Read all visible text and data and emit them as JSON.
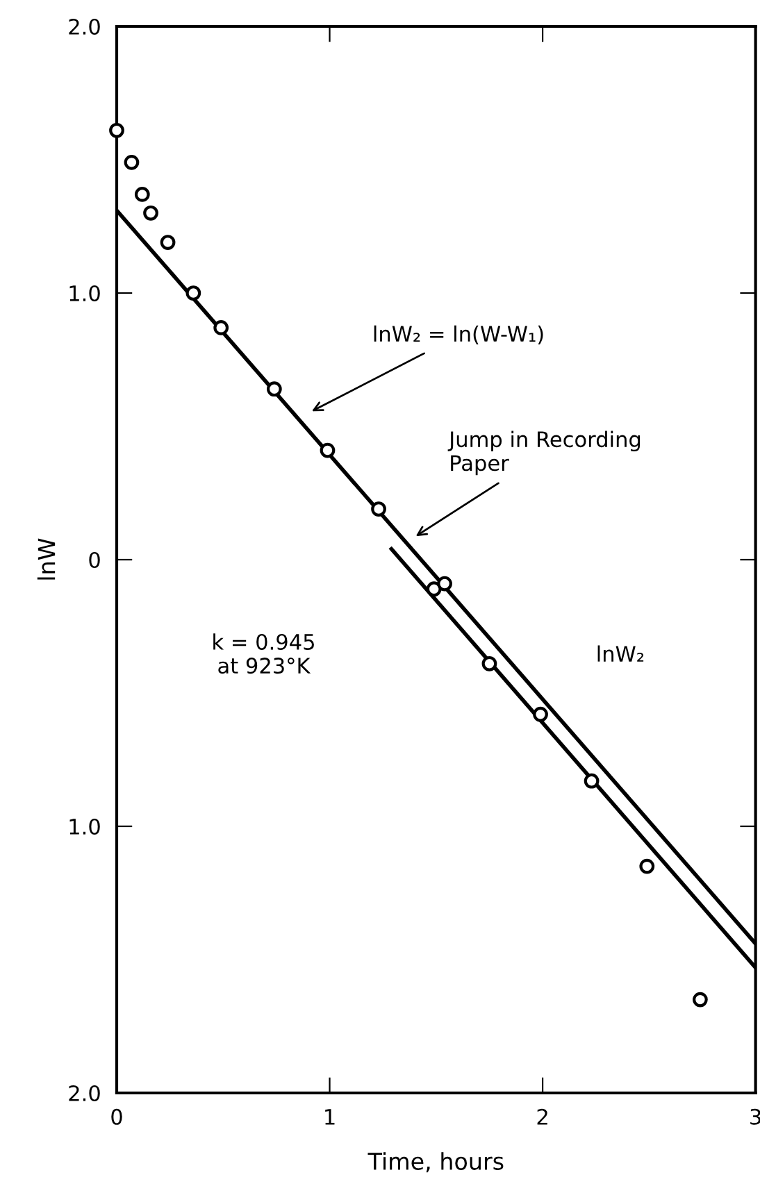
{
  "chart_data": {
    "type": "scatter",
    "xlabel": "Time, hours",
    "ylabel": "lnW",
    "xlim": [
      0,
      3
    ],
    "ylim": [
      -2,
      2
    ],
    "xticks": [
      0,
      1,
      2,
      3
    ],
    "yticks": [
      {
        "value": 2,
        "label": "2.0"
      },
      {
        "value": 1,
        "label": "1.0"
      },
      0,
      {
        "value": -1,
        "label": "1.0"
      },
      {
        "value": -2,
        "label": "2.0"
      }
    ],
    "grid": false,
    "series": [
      {
        "marker": "circle",
        "color": "#000000",
        "x": [
          0,
          0.07,
          0.12,
          0.16,
          0.24,
          0.36,
          0.49,
          0.74,
          0.99,
          1.23,
          1.49,
          1.54,
          1.75,
          1.99,
          2.23,
          2.49,
          2.74
        ],
        "values": [
          1.61,
          1.49,
          1.37,
          1.3,
          1.19,
          1.0,
          0.87,
          0.64,
          0.41,
          0.19,
          -0.11,
          -0.09,
          -0.39,
          -0.58,
          -0.83,
          -1.15,
          -1.65
        ]
      },
      {
        "type": "line",
        "color": "#000000",
        "line_style": "solid",
        "x": [
          0,
          3
        ],
        "values": [
          1.31,
          -1.44
        ]
      },
      {
        "type": "line",
        "color": "#000000",
        "line_style": "solid",
        "x": [
          1.29,
          3
        ],
        "values": [
          0.04,
          -1.53
        ]
      }
    ],
    "annotations": [
      "lnW₂ = ln(W-W₁)",
      "Jump in Recording\nPaper",
      "lnW₂",
      "k = 0.945\nat 923°K"
    ]
  }
}
